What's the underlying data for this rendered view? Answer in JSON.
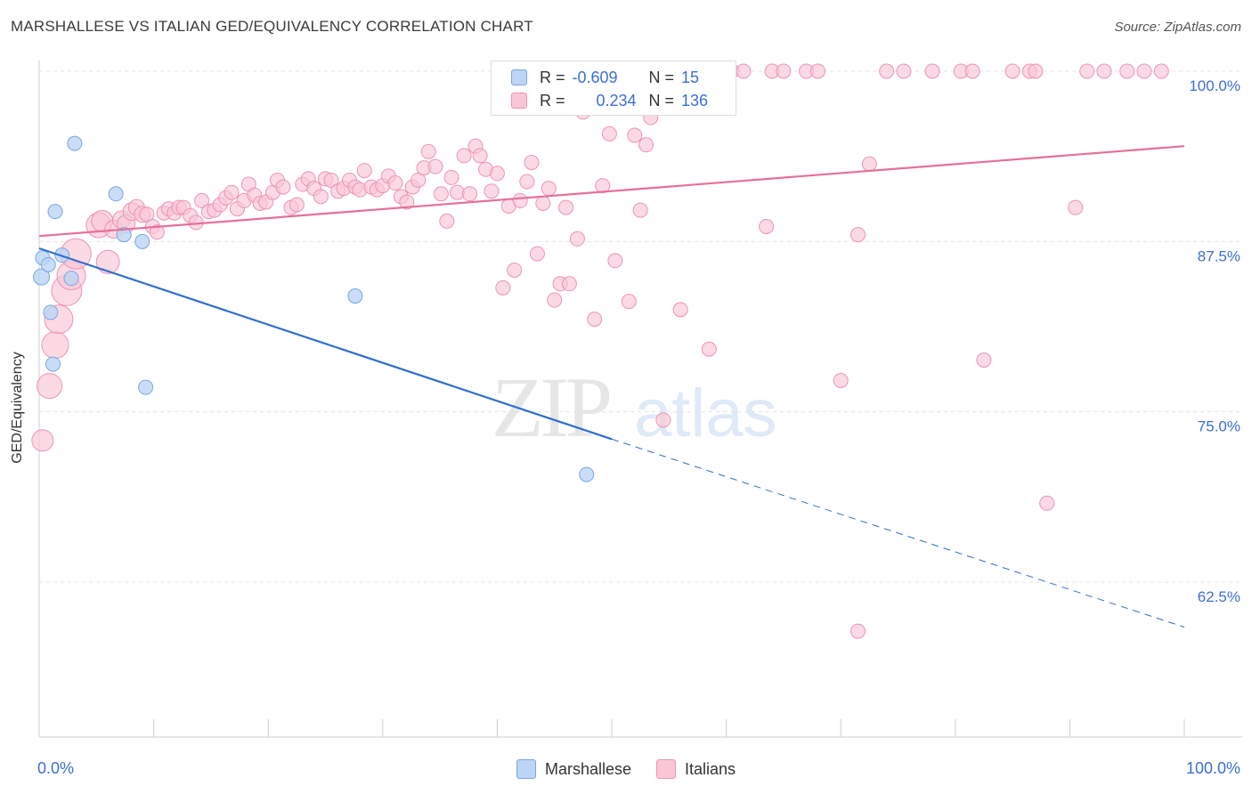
{
  "title": "MARSHALLESE VS ITALIAN GED/EQUIVALENCY CORRELATION CHART",
  "source": "Source: ZipAtlas.com",
  "watermark": {
    "zip": "ZIP",
    "atlas": "atlas"
  },
  "colors": {
    "marshallese_fill": "#bcd4f5",
    "marshallese_stroke": "#7aa6e6",
    "marshallese_line": "#2f6fcf",
    "italians_fill": "#f9c6d6",
    "italians_stroke": "#ee93b2",
    "italians_line": "#e5709a",
    "axis_label": "#3b6fd4",
    "grid": "#e4e4e4"
  },
  "legend": {
    "rows": [
      {
        "r_label": "R =",
        "r_value": "-0.609",
        "n_label": "N =",
        "n_value": "15"
      },
      {
        "r_label": "R =",
        "r_value": "0.234",
        "n_label": "N =",
        "n_value": "136"
      }
    ]
  },
  "chart_data": {
    "type": "scatter",
    "title": "MARSHALLESE VS ITALIAN GED/EQUIVALENCY CORRELATION CHART",
    "xlabel": "",
    "ylabel": "GED/Equivalency",
    "xlim": [
      0,
      100
    ],
    "ylim": [
      50.5,
      102
    ],
    "x_tick_labels": [
      "0.0%",
      "100.0%"
    ],
    "y_ticks": [
      62.5,
      75.0,
      87.5,
      100.0
    ],
    "y_tick_labels": [
      "62.5%",
      "75.0%",
      "87.5%",
      "100.0%"
    ],
    "grid": true,
    "legend_placement": "top-center",
    "series": [
      {
        "name": "Marshallese",
        "points": [
          [
            0.2,
            84.9,
            9
          ],
          [
            0.3,
            86.3,
            8
          ],
          [
            0.8,
            85.8,
            8
          ],
          [
            1.0,
            82.3,
            8
          ],
          [
            1.2,
            78.5,
            8
          ],
          [
            1.4,
            89.7,
            8
          ],
          [
            2.0,
            86.5,
            8
          ],
          [
            2.8,
            84.8,
            8
          ],
          [
            3.1,
            94.7,
            8
          ],
          [
            6.7,
            91.0,
            8
          ],
          [
            7.4,
            88.0,
            8
          ],
          [
            9.0,
            87.5,
            8
          ],
          [
            9.3,
            76.8,
            8
          ],
          [
            27.6,
            83.5,
            8
          ],
          [
            47.8,
            70.4,
            8
          ]
        ],
        "trend": {
          "x0": 0.0,
          "y0": 87.0,
          "x1": 50.0,
          "y1": 73.0,
          "x_dash_end": 100.0,
          "y_dash_end": 59.2
        }
      },
      {
        "name": "Italians",
        "points": [
          [
            0.3,
            72.9,
            12
          ],
          [
            0.9,
            76.9,
            14
          ],
          [
            1.4,
            79.9,
            15
          ],
          [
            1.7,
            81.8,
            16
          ],
          [
            2.4,
            83.9,
            17
          ],
          [
            2.8,
            85.0,
            16
          ],
          [
            3.2,
            86.6,
            17
          ],
          [
            5.2,
            88.7,
            14
          ],
          [
            5.5,
            89.0,
            12
          ],
          [
            6.0,
            86.0,
            13
          ],
          [
            6.5,
            88.4,
            10
          ],
          [
            7.2,
            89.1,
            10
          ],
          [
            7.6,
            88.8,
            10
          ],
          [
            8.1,
            89.7,
            10
          ],
          [
            8.5,
            90.0,
            9
          ],
          [
            9.0,
            89.5,
            9
          ],
          [
            9.4,
            89.5,
            8
          ],
          [
            9.9,
            88.6,
            8
          ],
          [
            10.3,
            88.2,
            8
          ],
          [
            10.9,
            89.6,
            8
          ],
          [
            11.3,
            89.9,
            8
          ],
          [
            11.8,
            89.6,
            8
          ],
          [
            12.2,
            90.0,
            8
          ],
          [
            12.6,
            90.0,
            8
          ],
          [
            13.2,
            89.4,
            8
          ],
          [
            13.7,
            88.9,
            8
          ],
          [
            14.2,
            90.5,
            8
          ],
          [
            14.8,
            89.7,
            8
          ],
          [
            15.3,
            89.8,
            8
          ],
          [
            15.8,
            90.2,
            8
          ],
          [
            16.3,
            90.7,
            8
          ],
          [
            16.8,
            91.1,
            8
          ],
          [
            17.3,
            89.9,
            8
          ],
          [
            17.9,
            90.5,
            8
          ],
          [
            18.3,
            91.7,
            8
          ],
          [
            18.8,
            90.9,
            8
          ],
          [
            19.3,
            90.3,
            8
          ],
          [
            19.8,
            90.4,
            8
          ],
          [
            20.4,
            91.1,
            8
          ],
          [
            20.8,
            92.0,
            8
          ],
          [
            21.3,
            91.5,
            8
          ],
          [
            22.0,
            90.0,
            8
          ],
          [
            22.5,
            90.2,
            8
          ],
          [
            23.0,
            91.7,
            8
          ],
          [
            23.5,
            92.1,
            8
          ],
          [
            24.0,
            91.4,
            8
          ],
          [
            24.6,
            90.8,
            8
          ],
          [
            25.0,
            92.1,
            8
          ],
          [
            25.5,
            92.0,
            8
          ],
          [
            26.1,
            91.2,
            8
          ],
          [
            26.6,
            91.4,
            8
          ],
          [
            27.1,
            92.0,
            8
          ],
          [
            27.6,
            91.5,
            8
          ],
          [
            28.0,
            91.3,
            8
          ],
          [
            28.4,
            92.7,
            8
          ],
          [
            29.0,
            91.5,
            8
          ],
          [
            29.5,
            91.3,
            8
          ],
          [
            30.0,
            91.6,
            8
          ],
          [
            30.5,
            92.3,
            8
          ],
          [
            31.1,
            91.8,
            8
          ],
          [
            31.6,
            90.8,
            8
          ],
          [
            32.1,
            90.4,
            8
          ],
          [
            32.6,
            91.5,
            8
          ],
          [
            33.1,
            92.0,
            8
          ],
          [
            33.6,
            92.9,
            8
          ],
          [
            34.0,
            94.1,
            8
          ],
          [
            34.6,
            93.0,
            8
          ],
          [
            35.1,
            91.0,
            8
          ],
          [
            35.6,
            89.0,
            8
          ],
          [
            36.0,
            92.2,
            8
          ],
          [
            36.5,
            91.1,
            8
          ],
          [
            37.1,
            93.8,
            8
          ],
          [
            37.6,
            91.0,
            8
          ],
          [
            38.1,
            94.5,
            8
          ],
          [
            38.5,
            93.8,
            8
          ],
          [
            39.0,
            92.8,
            8
          ],
          [
            39.5,
            91.2,
            8
          ],
          [
            40.0,
            92.5,
            8
          ],
          [
            40.5,
            84.1,
            8
          ],
          [
            41.0,
            90.1,
            8
          ],
          [
            41.5,
            85.4,
            8
          ],
          [
            42.0,
            90.5,
            8
          ],
          [
            42.6,
            91.9,
            8
          ],
          [
            43.0,
            93.3,
            8
          ],
          [
            43.5,
            86.6,
            8
          ],
          [
            44.0,
            90.3,
            8
          ],
          [
            44.5,
            91.4,
            8
          ],
          [
            45.0,
            83.2,
            8
          ],
          [
            45.5,
            84.4,
            8
          ],
          [
            46.0,
            90.0,
            8
          ],
          [
            46.3,
            84.4,
            8
          ],
          [
            47.0,
            87.7,
            8
          ],
          [
            47.5,
            97.0,
            8
          ],
          [
            48.5,
            81.8,
            8
          ],
          [
            49.2,
            91.6,
            8
          ],
          [
            49.8,
            95.4,
            8
          ],
          [
            50.3,
            86.1,
            8
          ],
          [
            51.5,
            83.1,
            8
          ],
          [
            52.0,
            95.3,
            8
          ],
          [
            52.5,
            89.8,
            8
          ],
          [
            53.0,
            94.6,
            8
          ],
          [
            53.4,
            96.6,
            8
          ],
          [
            54.0,
            100.0,
            8
          ],
          [
            54.5,
            74.4,
            8
          ],
          [
            55.0,
            100.0,
            8
          ],
          [
            56.0,
            82.5,
            8
          ],
          [
            57.0,
            100.0,
            8
          ],
          [
            58.5,
            79.6,
            8
          ],
          [
            59.0,
            100.0,
            8
          ],
          [
            60.5,
            100.0,
            8
          ],
          [
            61.5,
            100.0,
            8
          ],
          [
            63.5,
            88.6,
            8
          ],
          [
            64.0,
            100.0,
            8
          ],
          [
            65.0,
            100.0,
            8
          ],
          [
            67.0,
            100.0,
            8
          ],
          [
            68.0,
            100.0,
            8
          ],
          [
            70.0,
            77.3,
            8
          ],
          [
            71.5,
            88.0,
            8
          ],
          [
            72.5,
            93.2,
            8
          ],
          [
            74.0,
            100.0,
            8
          ],
          [
            75.5,
            100.0,
            8
          ],
          [
            78.0,
            100.0,
            8
          ],
          [
            80.5,
            100.0,
            8
          ],
          [
            81.5,
            100.0,
            8
          ],
          [
            82.5,
            78.8,
            8
          ],
          [
            85.0,
            100.0,
            8
          ],
          [
            86.5,
            100.0,
            8
          ],
          [
            87.0,
            100.0,
            8
          ],
          [
            88.0,
            68.3,
            8
          ],
          [
            90.5,
            90.0,
            8
          ],
          [
            91.5,
            100.0,
            8
          ],
          [
            93.0,
            100.0,
            8
          ],
          [
            95.0,
            100.0,
            8
          ],
          [
            96.5,
            100.0,
            8
          ],
          [
            98.0,
            100.0,
            8
          ],
          [
            71.5,
            58.9,
            8
          ]
        ],
        "trend": {
          "x0": 0.0,
          "y0": 87.9,
          "x1": 100.0,
          "y1": 94.5
        }
      }
    ]
  }
}
